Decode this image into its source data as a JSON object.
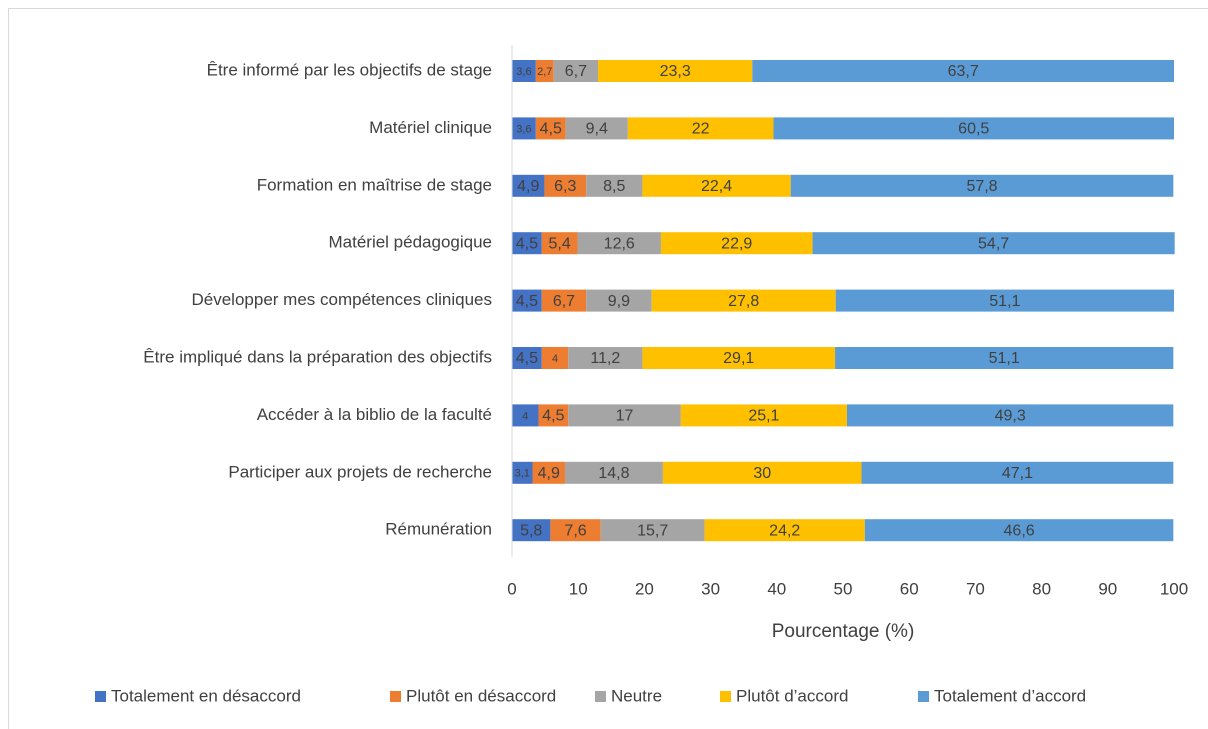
{
  "chart_data": {
    "type": "stacked_bar_horizontal",
    "categories": [
      "Être informé par les objectifs de stage",
      "Matériel clinique",
      "Formation en maîtrise de stage",
      "Matériel pédagogique",
      "Développer mes compétences cliniques",
      "Être impliqué dans la préparation des objectifs",
      "Accéder à la biblio de la faculté",
      "Participer aux projets de recherche",
      "Rémunération"
    ],
    "series": [
      {
        "name": "Totalement en désaccord",
        "color": "#4472c4",
        "values": [
          3.6,
          3.6,
          4.9,
          4.5,
          4.5,
          4.5,
          4,
          3.1,
          5.8
        ],
        "value_labels": [
          "3,6",
          "3,6",
          "4,9",
          "4,5",
          "4,5",
          "4,5",
          "4",
          "3,1",
          "5,8"
        ]
      },
      {
        "name": "Plutôt en désaccord",
        "color": "#ed7d31",
        "values": [
          2.7,
          4.5,
          6.3,
          5.4,
          6.7,
          4,
          4.5,
          4.9,
          7.6
        ],
        "value_labels": [
          "2,7",
          "4,5",
          "6,3",
          "5,4",
          "6,7",
          "4",
          "4,5",
          "4,9",
          "7,6"
        ]
      },
      {
        "name": "Neutre",
        "color": "#a5a5a5",
        "values": [
          6.7,
          9.4,
          8.5,
          12.6,
          9.9,
          11.2,
          17,
          14.8,
          15.7
        ],
        "value_labels": [
          "6,7",
          "9,4",
          "8,5",
          "12,6",
          "9,9",
          "11,2",
          "17",
          "14,8",
          "15,7"
        ]
      },
      {
        "name": "Plutôt d’accord",
        "color": "#ffc000",
        "values": [
          23.3,
          22,
          22.4,
          22.9,
          27.8,
          29.1,
          25.1,
          30,
          24.2
        ],
        "value_labels": [
          "23,3",
          "22",
          "22,4",
          "22,9",
          "27,8",
          "29,1",
          "25,1",
          "30",
          "24,2"
        ]
      },
      {
        "name": "Totalement d’accord",
        "color": "#5b9bd5",
        "values": [
          63.7,
          60.5,
          57.8,
          54.7,
          51.1,
          51.1,
          49.3,
          47.1,
          46.6
        ],
        "value_labels": [
          "63,7",
          "60,5",
          "57,8",
          "54,7",
          "51,1",
          "51,1",
          "49,3",
          "47,1",
          "46,6"
        ]
      }
    ],
    "xlabel": "Pourcentage (%)",
    "xlim": [
      0,
      100
    ],
    "xticks": [
      0,
      10,
      20,
      30,
      40,
      50,
      60,
      70,
      80,
      90,
      100
    ],
    "grid": false,
    "legend": "bottom"
  }
}
